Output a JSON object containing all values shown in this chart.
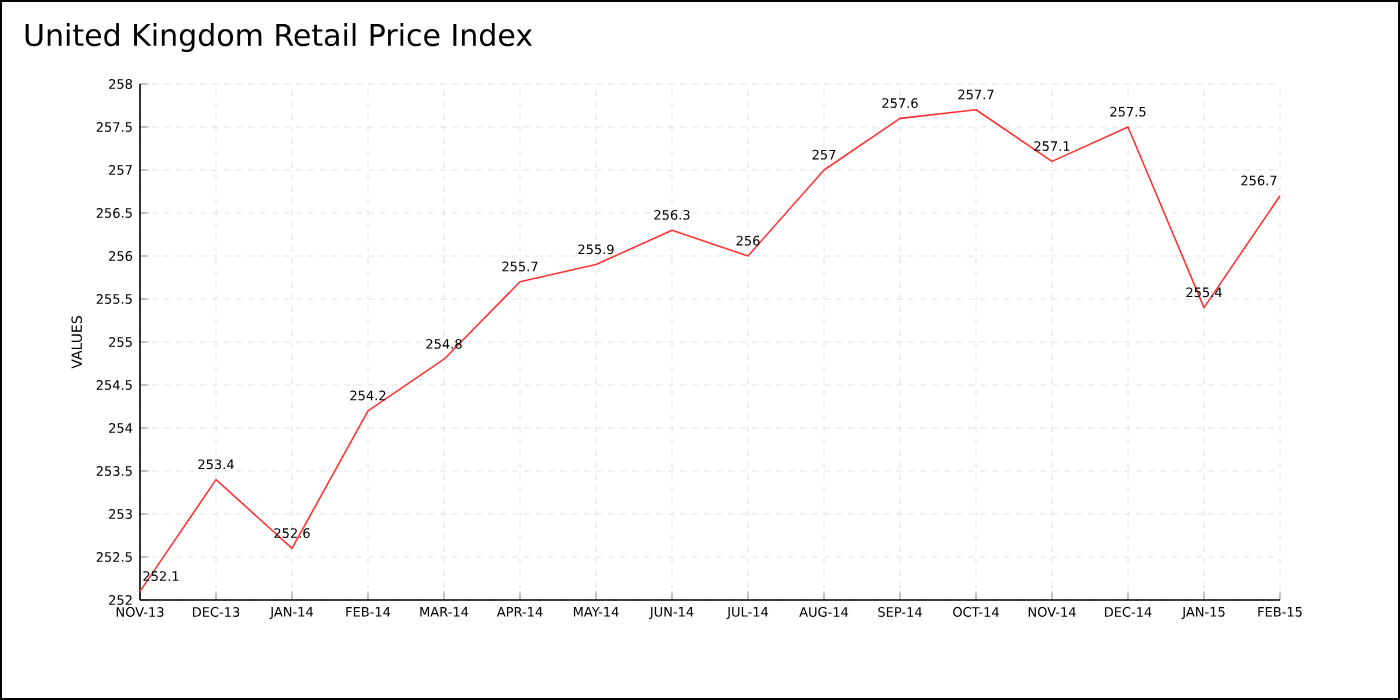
{
  "chart_data": {
    "type": "line",
    "title": "United Kingdom Retail Price Index",
    "ylabel": "VALUES",
    "categories": [
      "NOV-13",
      "DEC-13",
      "JAN-14",
      "FEB-14",
      "MAR-14",
      "APR-14",
      "MAY-14",
      "JUN-14",
      "JUL-14",
      "AUG-14",
      "SEP-14",
      "OCT-14",
      "NOV-14",
      "DEC-14",
      "JAN-15",
      "FEB-15"
    ],
    "series": [
      {
        "color": "#ff3333",
        "values": [
          252.1,
          253.4,
          252.6,
          254.2,
          254.8,
          255.7,
          255.9,
          256.3,
          256,
          257,
          257.6,
          257.7,
          257.1,
          257.5,
          255.4,
          256.7
        ]
      }
    ],
    "ylim": [
      252,
      258
    ],
    "yticks": [
      252,
      252.5,
      253,
      253.5,
      254,
      254.5,
      255,
      255.5,
      256,
      256.5,
      257,
      257.5,
      258
    ],
    "grid": true,
    "data_labels": true,
    "marker": "none",
    "line_style": "solid"
  }
}
